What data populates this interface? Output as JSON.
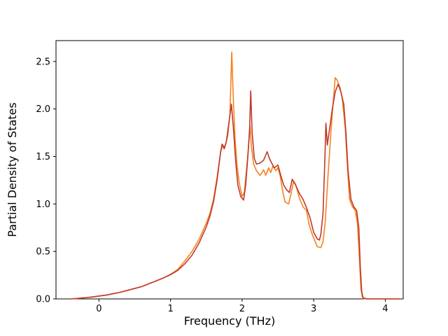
{
  "figure": {
    "background": "#ffffff"
  },
  "chart_data": {
    "type": "line",
    "title": "",
    "xlabel": "Frequency (THz)",
    "ylabel": "Partial Density of States",
    "xlim": [
      -0.6,
      4.25
    ],
    "ylim": [
      0,
      2.72
    ],
    "grid": false,
    "legend_position": "none",
    "xticks": {
      "values": [
        0,
        1,
        2,
        3,
        4
      ],
      "labels": [
        "0",
        "1",
        "2",
        "3",
        "4"
      ]
    },
    "yticks": {
      "values": [
        0,
        0.5,
        1.0,
        1.5,
        2.0,
        2.5
      ],
      "labels": [
        "0.0",
        "0.5",
        "1.0",
        "1.5",
        "2.0",
        "2.5"
      ]
    },
    "frame_color": "#000000",
    "tick_color": "#000000",
    "series": [
      {
        "name": "pdos-orange",
        "color": "#f5821f",
        "linewidth": 1.6,
        "points": [
          [
            -0.4,
            0.0
          ],
          [
            -0.3,
            0.005
          ],
          [
            -0.2,
            0.012
          ],
          [
            -0.1,
            0.02
          ],
          [
            0.0,
            0.03
          ],
          [
            0.1,
            0.04
          ],
          [
            0.2,
            0.055
          ],
          [
            0.3,
            0.07
          ],
          [
            0.4,
            0.09
          ],
          [
            0.5,
            0.11
          ],
          [
            0.6,
            0.13
          ],
          [
            0.7,
            0.16
          ],
          [
            0.8,
            0.19
          ],
          [
            0.9,
            0.22
          ],
          [
            1.0,
            0.26
          ],
          [
            1.1,
            0.31
          ],
          [
            1.2,
            0.4
          ],
          [
            1.3,
            0.5
          ],
          [
            1.4,
            0.63
          ],
          [
            1.5,
            0.8
          ],
          [
            1.55,
            0.9
          ],
          [
            1.6,
            1.05
          ],
          [
            1.65,
            1.28
          ],
          [
            1.7,
            1.55
          ],
          [
            1.73,
            1.62
          ],
          [
            1.76,
            1.6
          ],
          [
            1.8,
            1.72
          ],
          [
            1.83,
            1.95
          ],
          [
            1.855,
            2.6
          ],
          [
            1.88,
            2.05
          ],
          [
            1.9,
            1.7
          ],
          [
            1.93,
            1.4
          ],
          [
            1.96,
            1.22
          ],
          [
            2.0,
            1.08
          ],
          [
            2.03,
            1.12
          ],
          [
            2.06,
            1.35
          ],
          [
            2.09,
            1.6
          ],
          [
            2.11,
            1.83
          ],
          [
            2.13,
            1.6
          ],
          [
            2.16,
            1.42
          ],
          [
            2.2,
            1.35
          ],
          [
            2.25,
            1.3
          ],
          [
            2.3,
            1.36
          ],
          [
            2.33,
            1.3
          ],
          [
            2.37,
            1.38
          ],
          [
            2.4,
            1.33
          ],
          [
            2.43,
            1.4
          ],
          [
            2.47,
            1.35
          ],
          [
            2.5,
            1.38
          ],
          [
            2.53,
            1.3
          ],
          [
            2.57,
            1.12
          ],
          [
            2.6,
            1.02
          ],
          [
            2.65,
            1.0
          ],
          [
            2.68,
            1.1
          ],
          [
            2.72,
            1.24
          ],
          [
            2.75,
            1.2
          ],
          [
            2.8,
            1.06
          ],
          [
            2.85,
            0.97
          ],
          [
            2.9,
            0.93
          ],
          [
            2.93,
            0.8
          ],
          [
            2.97,
            0.7
          ],
          [
            3.0,
            0.64
          ],
          [
            3.05,
            0.55
          ],
          [
            3.1,
            0.54
          ],
          [
            3.13,
            0.6
          ],
          [
            3.16,
            0.8
          ],
          [
            3.2,
            1.3
          ],
          [
            3.24,
            1.75
          ],
          [
            3.27,
            2.05
          ],
          [
            3.3,
            2.33
          ],
          [
            3.33,
            2.3
          ],
          [
            3.37,
            2.22
          ],
          [
            3.4,
            2.1
          ],
          [
            3.44,
            1.8
          ],
          [
            3.47,
            1.4
          ],
          [
            3.5,
            1.05
          ],
          [
            3.54,
            0.97
          ],
          [
            3.58,
            0.93
          ],
          [
            3.61,
            0.8
          ],
          [
            3.64,
            0.4
          ],
          [
            3.66,
            0.1
          ],
          [
            3.68,
            0.02
          ],
          [
            3.7,
            0.0
          ],
          [
            3.8,
            0.0
          ],
          [
            4.0,
            0.0
          ],
          [
            4.2,
            0.0
          ]
        ]
      },
      {
        "name": "pdos-red",
        "color": "#c0392b",
        "linewidth": 1.6,
        "points": [
          [
            -0.4,
            0.0
          ],
          [
            -0.3,
            0.005
          ],
          [
            -0.2,
            0.012
          ],
          [
            -0.1,
            0.02
          ],
          [
            0.0,
            0.03
          ],
          [
            0.1,
            0.04
          ],
          [
            0.2,
            0.055
          ],
          [
            0.3,
            0.07
          ],
          [
            0.4,
            0.09
          ],
          [
            0.5,
            0.11
          ],
          [
            0.6,
            0.13
          ],
          [
            0.7,
            0.16
          ],
          [
            0.8,
            0.19
          ],
          [
            0.9,
            0.22
          ],
          [
            1.0,
            0.255
          ],
          [
            1.1,
            0.3
          ],
          [
            1.2,
            0.37
          ],
          [
            1.3,
            0.46
          ],
          [
            1.4,
            0.59
          ],
          [
            1.5,
            0.76
          ],
          [
            1.55,
            0.87
          ],
          [
            1.6,
            1.02
          ],
          [
            1.65,
            1.25
          ],
          [
            1.7,
            1.55
          ],
          [
            1.72,
            1.63
          ],
          [
            1.75,
            1.58
          ],
          [
            1.78,
            1.66
          ],
          [
            1.82,
            1.88
          ],
          [
            1.85,
            2.05
          ],
          [
            1.88,
            1.78
          ],
          [
            1.91,
            1.45
          ],
          [
            1.94,
            1.2
          ],
          [
            1.98,
            1.08
          ],
          [
            2.02,
            1.04
          ],
          [
            2.05,
            1.2
          ],
          [
            2.08,
            1.5
          ],
          [
            2.105,
            1.8
          ],
          [
            2.12,
            2.19
          ],
          [
            2.14,
            1.75
          ],
          [
            2.17,
            1.48
          ],
          [
            2.2,
            1.42
          ],
          [
            2.25,
            1.43
          ],
          [
            2.3,
            1.46
          ],
          [
            2.35,
            1.55
          ],
          [
            2.38,
            1.48
          ],
          [
            2.42,
            1.42
          ],
          [
            2.45,
            1.38
          ],
          [
            2.5,
            1.41
          ],
          [
            2.54,
            1.3
          ],
          [
            2.58,
            1.2
          ],
          [
            2.62,
            1.15
          ],
          [
            2.66,
            1.12
          ],
          [
            2.7,
            1.26
          ],
          [
            2.74,
            1.21
          ],
          [
            2.8,
            1.11
          ],
          [
            2.85,
            1.05
          ],
          [
            2.9,
            0.96
          ],
          [
            2.95,
            0.85
          ],
          [
            3.0,
            0.7
          ],
          [
            3.05,
            0.63
          ],
          [
            3.08,
            0.62
          ],
          [
            3.1,
            0.68
          ],
          [
            3.13,
            0.9
          ],
          [
            3.155,
            1.45
          ],
          [
            3.17,
            1.85
          ],
          [
            3.19,
            1.62
          ],
          [
            3.22,
            1.78
          ],
          [
            3.26,
            2.0
          ],
          [
            3.3,
            2.18
          ],
          [
            3.34,
            2.26
          ],
          [
            3.38,
            2.18
          ],
          [
            3.42,
            2.05
          ],
          [
            3.45,
            1.75
          ],
          [
            3.48,
            1.35
          ],
          [
            3.52,
            1.05
          ],
          [
            3.56,
            0.97
          ],
          [
            3.6,
            0.93
          ],
          [
            3.63,
            0.75
          ],
          [
            3.65,
            0.35
          ],
          [
            3.67,
            0.08
          ],
          [
            3.69,
            0.01
          ],
          [
            3.75,
            0.0
          ],
          [
            3.9,
            0.0
          ],
          [
            4.1,
            0.0
          ],
          [
            4.2,
            0.0
          ]
        ]
      }
    ]
  }
}
